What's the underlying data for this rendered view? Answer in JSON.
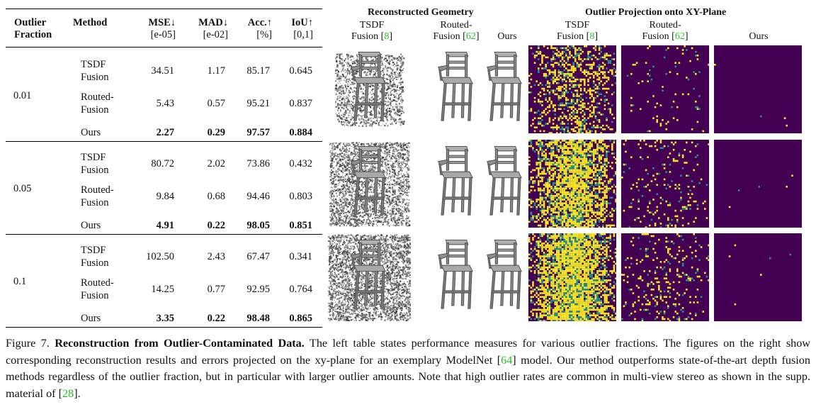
{
  "table": {
    "headers": {
      "outlier_fraction_line1": "Outlier",
      "outlier_fraction_line2": "Fraction",
      "method": "Method",
      "mse": "MSE↓",
      "mse_unit": "[e-05]",
      "mad": "MAD↓",
      "mad_unit": "[e-02]",
      "acc": "Acc.↑",
      "acc_unit": "[%]",
      "iou": "IoU↑",
      "iou_unit": "[0,1]"
    },
    "groups": [
      {
        "fraction": "0.01",
        "rows": [
          {
            "method_line1": "TSDF",
            "method_line2": "Fusion",
            "mse": "34.51",
            "mad": "1.17",
            "acc": "85.17",
            "iou": "0.645"
          },
          {
            "method_line1": "Routed-",
            "method_line2": "Fusion",
            "mse": "5.43",
            "mad": "0.57",
            "acc": "95.21",
            "iou": "0.837"
          },
          {
            "method_line1": "Ours",
            "method_line2": "",
            "mse": "2.27",
            "mad": "0.29",
            "acc": "97.57",
            "iou": "0.884"
          }
        ]
      },
      {
        "fraction": "0.05",
        "rows": [
          {
            "method_line1": "TSDF",
            "method_line2": "Fusion",
            "mse": "80.72",
            "mad": "2.02",
            "acc": "73.86",
            "iou": "0.432"
          },
          {
            "method_line1": "Routed-",
            "method_line2": "Fusion",
            "mse": "9.84",
            "mad": "0.68",
            "acc": "94.46",
            "iou": "0.803"
          },
          {
            "method_line1": "Ours",
            "method_line2": "",
            "mse": "4.91",
            "mad": "0.22",
            "acc": "98.05",
            "iou": "0.851"
          }
        ]
      },
      {
        "fraction": "0.1",
        "rows": [
          {
            "method_line1": "TSDF",
            "method_line2": "Fusion",
            "mse": "102.50",
            "mad": "2.43",
            "acc": "67.47",
            "iou": "0.341"
          },
          {
            "method_line1": "Routed-",
            "method_line2": "Fusion",
            "mse": "14.25",
            "mad": "0.77",
            "acc": "92.95",
            "iou": "0.764"
          },
          {
            "method_line1": "Ours",
            "method_line2": "",
            "mse": "3.35",
            "mad": "0.22",
            "acc": "98.48",
            "iou": "0.865"
          }
        ]
      }
    ]
  },
  "figure": {
    "geometry_title": "Reconstructed Geometry",
    "projection_title": "Outlier Projection onto XY-Plane",
    "columns": {
      "tsdf_line1": "TSDF",
      "tsdf_line2": "Fusion [",
      "tsdf_ref": "8",
      "routed_line1": "Routed-",
      "routed_line2": "Fusion [",
      "routed_ref": "62",
      "ours": "Ours",
      "close_bracket": "]"
    },
    "colors": {
      "heatmap_background": "#440154",
      "heatmap_outlier": "#fde725",
      "heatmap_mid": "#21918c",
      "reference_link": "#22c325"
    }
  },
  "caption": {
    "prefix": "Figure 7.",
    "title": "Reconstruction from Outlier-Contaminated Data.",
    "text1": " The left table states performance measures for various outlier fractions. The figures on the right show corresponding reconstruction results and errors projected on the xy-plane for an exemplary ModelNet [",
    "ref1": "64",
    "text2": "] model. Our method outperforms state-of-the-art depth fusion methods regardless of the outlier fraction, but in particular with larger outlier amounts. Note that high outlier rates are common in multi-view stereo as shown in the supp. material of [",
    "ref2": "28",
    "text3": "]."
  }
}
